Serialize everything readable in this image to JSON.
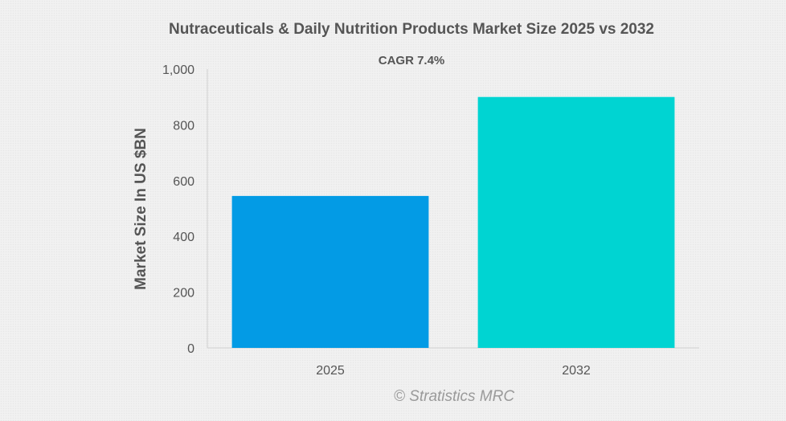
{
  "chart_data": {
    "type": "bar",
    "title": "Nutraceuticals & Daily Nutrition Products Market Size 2025 vs 2032",
    "annotation": "CAGR 7.4%",
    "ylabel": "Market Size In US $BN",
    "xlabel": "",
    "categories": [
      "2025",
      "2032"
    ],
    "values": [
      545,
      900
    ],
    "colors": [
      "#039be5",
      "#00d4d2"
    ],
    "ylim": [
      0,
      1000
    ],
    "yticks": [
      0,
      200,
      400,
      600,
      800,
      1000
    ],
    "ytick_labels": [
      "0",
      "200",
      "400",
      "600",
      "800",
      "1,000"
    ],
    "grid": false,
    "legend": "none"
  },
  "watermark": "© Stratistics MRC"
}
